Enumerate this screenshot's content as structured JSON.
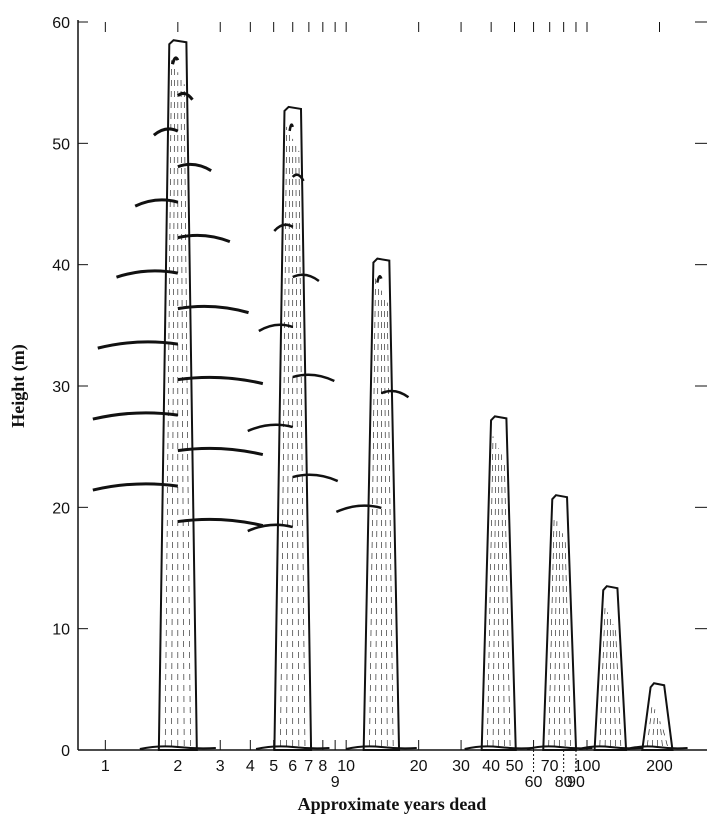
{
  "chart_data": {
    "type": "snag",
    "x_label": "Approximate years dead",
    "y_label": "Height (m)",
    "x": [
      2,
      6,
      14,
      43,
      77,
      125,
      196
    ],
    "values": [
      58.5,
      53,
      40.5,
      27.5,
      21,
      13.5,
      5.5
    ],
    "xscale": "log",
    "xlim": [
      0.77,
      315
    ],
    "ylim": [
      0,
      60
    ],
    "xticks": [
      1,
      2,
      3,
      4,
      5,
      6,
      7,
      8,
      9,
      10,
      20,
      30,
      40,
      50,
      60,
      70,
      80,
      90,
      100,
      200
    ],
    "yticks": [
      0,
      10,
      20,
      30,
      40,
      50,
      60
    ],
    "color": "#111111"
  }
}
